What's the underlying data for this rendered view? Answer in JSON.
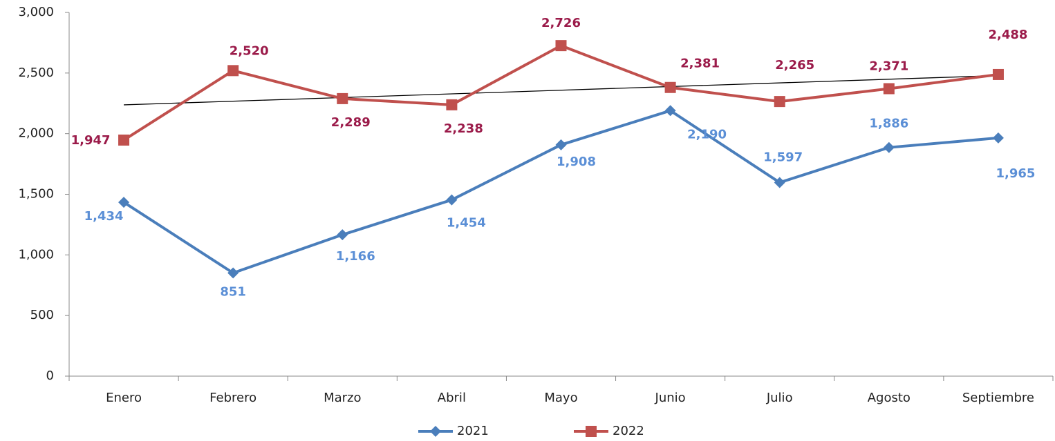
{
  "chart_data": {
    "type": "line",
    "categories": [
      "Enero",
      "Febrero",
      "Marzo",
      "Abril",
      "Mayo",
      "Junio",
      "Julio",
      "Agosto",
      "Septiembre"
    ],
    "series": [
      {
        "name": "2021",
        "color": "#4a7ebb",
        "label_color": "#5b8fd6",
        "marker": "diamond",
        "values": [
          1434,
          851,
          1166,
          1454,
          1908,
          2190,
          1597,
          1886,
          1965
        ],
        "value_labels": [
          "1,434",
          "851",
          "1,166",
          "1,454",
          "1,908",
          "2,190",
          "1,597",
          "1,886",
          "1,965"
        ]
      },
      {
        "name": "2022",
        "color": "#c0504d",
        "label_color": "#9b1b4a",
        "marker": "square",
        "trendline": "linear",
        "values": [
          1947,
          2520,
          2289,
          2238,
          2726,
          2381,
          2265,
          2371,
          2488
        ],
        "value_labels": [
          "1,947",
          "2,520",
          "2,289",
          "2,238",
          "2,726",
          "2,381",
          "2,265",
          "2,371",
          "2,488"
        ]
      }
    ],
    "ylim": [
      0,
      3000
    ],
    "yticks": [
      0,
      500,
      {
        "value": 1000,
        "label": "1,000"
      },
      {
        "value": 1500,
        "label": "1,500"
      },
      {
        "value": 2000,
        "label": "2,000"
      },
      {
        "value": 2500,
        "label": "2,500"
      },
      {
        "value": 3000,
        "label": "3,000"
      }
    ],
    "legend": "bottom",
    "grid": false
  }
}
